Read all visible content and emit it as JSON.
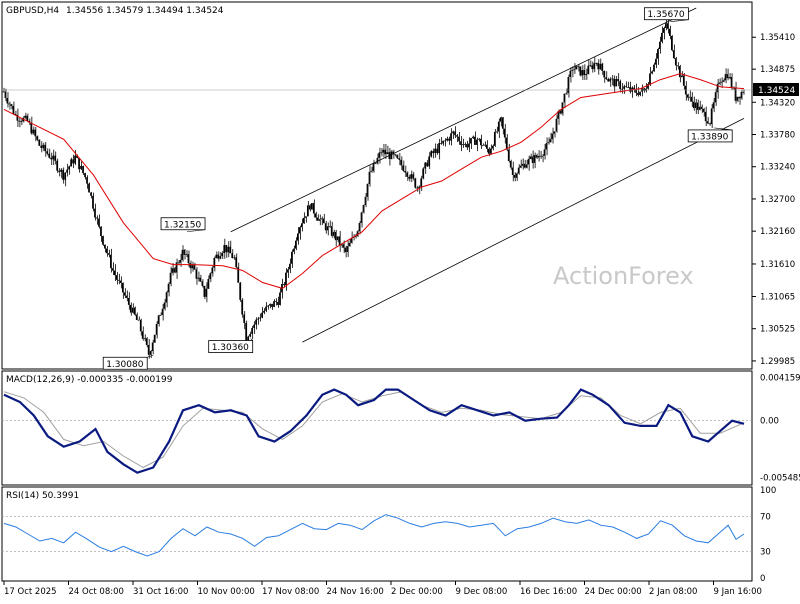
{
  "header": {
    "symbol": "GBPUSD,H4",
    "ohlc": "1.34556 1.34579 1.34494 1.34524"
  },
  "watermark": "ActionForex",
  "colors": {
    "candle": "#000000",
    "ma": "#e00000",
    "channel": "#000000",
    "macd": "#0a1a80",
    "signal": "#a0a0a0",
    "rsi": "#2a7de1",
    "price_marker_bg": "#000000",
    "price_marker_text": "#ffffff"
  },
  "chart_data": [
    {
      "type": "candlestick",
      "title": "GBPUSD,H4",
      "ylim": [
        1.299,
        1.359
      ],
      "y_ticks": [
        "1.35410",
        "1.34875",
        "1.34320",
        "1.33780",
        "1.33240",
        "1.32700",
        "1.32160",
        "1.31610",
        "1.31065",
        "1.30525",
        "1.29985"
      ],
      "current_price": "1.34524",
      "annotations": [
        {
          "label": "1.32150",
          "x": 90,
          "y": 1.3215
        },
        {
          "label": "1.30080",
          "x": 73,
          "y": 1.3008
        },
        {
          "label": "1.30360",
          "x": 122,
          "y": 1.3036
        },
        {
          "label": "1.35670",
          "x": 333,
          "y": 1.3567
        },
        {
          "label": "1.33890",
          "x": 355,
          "y": 1.3389
        }
      ],
      "channel": {
        "upper": [
          [
            114,
            1.3215
          ],
          [
            348,
            1.359
          ]
        ],
        "lower": [
          [
            150,
            1.303
          ],
          [
            372,
            1.3405
          ]
        ]
      },
      "series": [
        {
          "name": "price_path",
          "points": [
            [
              0,
              1.345
            ],
            [
              6,
              1.341
            ],
            [
              12,
              1.34
            ],
            [
              18,
              1.336
            ],
            [
              24,
              1.334
            ],
            [
              30,
              1.331
            ],
            [
              36,
              1.334
            ],
            [
              42,
              1.33
            ],
            [
              48,
              1.322
            ],
            [
              55,
              1.315
            ],
            [
              62,
              1.31
            ],
            [
              68,
              1.306
            ],
            [
              73,
              1.301
            ],
            [
              79,
              1.308
            ],
            [
              84,
              1.314
            ],
            [
              90,
              1.318
            ],
            [
              96,
              1.315
            ],
            [
              101,
              1.311
            ],
            [
              106,
              1.317
            ],
            [
              111,
              1.319
            ],
            [
              116,
              1.317
            ],
            [
              122,
              1.304
            ],
            [
              130,
              1.308
            ],
            [
              138,
              1.31
            ],
            [
              142,
              1.314
            ],
            [
              148,
              1.322
            ],
            [
              154,
              1.326
            ],
            [
              160,
              1.323
            ],
            [
              166,
              1.321
            ],
            [
              172,
              1.318
            ],
            [
              178,
              1.322
            ],
            [
              184,
              1.331
            ],
            [
              190,
              1.335
            ],
            [
              196,
              1.334
            ],
            [
              202,
              1.332
            ],
            [
              208,
              1.329
            ],
            [
              214,
              1.334
            ],
            [
              220,
              1.336
            ],
            [
              226,
              1.338
            ],
            [
              232,
              1.336
            ],
            [
              238,
              1.337
            ],
            [
              244,
              1.335
            ],
            [
              250,
              1.34
            ],
            [
              256,
              1.331
            ],
            [
              262,
              1.333
            ],
            [
              268,
              1.334
            ],
            [
              274,
              1.336
            ],
            [
              280,
              1.342
            ],
            [
              286,
              1.349
            ],
            [
              292,
              1.348
            ],
            [
              298,
              1.35
            ],
            [
              304,
              1.347
            ],
            [
              310,
              1.346
            ],
            [
              316,
              1.345
            ],
            [
              322,
              1.345
            ],
            [
              328,
              1.351
            ],
            [
              333,
              1.3565
            ],
            [
              338,
              1.35
            ],
            [
              344,
              1.344
            ],
            [
              350,
              1.342
            ],
            [
              355,
              1.34
            ],
            [
              360,
              1.347
            ],
            [
              364,
              1.348
            ],
            [
              368,
              1.344
            ],
            [
              372,
              1.3452
            ]
          ]
        },
        {
          "name": "moving_average",
          "points": [
            [
              0,
              1.342
            ],
            [
              15,
              1.3395
            ],
            [
              30,
              1.337
            ],
            [
              45,
              1.331
            ],
            [
              60,
              1.323
            ],
            [
              75,
              1.317
            ],
            [
              85,
              1.316
            ],
            [
              95,
              1.316
            ],
            [
              110,
              1.3158
            ],
            [
              120,
              1.315
            ],
            [
              130,
              1.313
            ],
            [
              140,
              1.312
            ],
            [
              150,
              1.3145
            ],
            [
              160,
              1.3175
            ],
            [
              170,
              1.3195
            ],
            [
              180,
              1.3215
            ],
            [
              190,
              1.325
            ],
            [
              200,
              1.327
            ],
            [
              210,
              1.329
            ],
            [
              220,
              1.33
            ],
            [
              230,
              1.332
            ],
            [
              240,
              1.334
            ],
            [
              250,
              1.335
            ],
            [
              260,
              1.3365
            ],
            [
              270,
              1.339
            ],
            [
              280,
              1.342
            ],
            [
              290,
              1.344
            ],
            [
              300,
              1.3445
            ],
            [
              310,
              1.345
            ],
            [
              320,
              1.3455
            ],
            [
              330,
              1.347
            ],
            [
              340,
              1.348
            ],
            [
              350,
              1.347
            ],
            [
              360,
              1.3458
            ],
            [
              372,
              1.3455
            ]
          ]
        }
      ]
    },
    {
      "type": "line",
      "title": "MACD(12,26,9) -0.000335 -0.000199",
      "ylim": [
        -0.0059,
        0.0045
      ],
      "y_ticks": [
        "0.004159",
        "0.00",
        "-0.005485"
      ],
      "series": [
        {
          "name": "macd",
          "points": [
            [
              0,
              0.0025
            ],
            [
              8,
              0.0018
            ],
            [
              15,
              0.0005
            ],
            [
              22,
              -0.0015
            ],
            [
              30,
              -0.0025
            ],
            [
              38,
              -0.002
            ],
            [
              46,
              -0.0008
            ],
            [
              52,
              -0.003
            ],
            [
              60,
              -0.0042
            ],
            [
              67,
              -0.005
            ],
            [
              75,
              -0.0045
            ],
            [
              83,
              -0.002
            ],
            [
              90,
              0.001
            ],
            [
              98,
              0.0015
            ],
            [
              106,
              0.0008
            ],
            [
              114,
              0.001
            ],
            [
              122,
              0.0005
            ],
            [
              128,
              -0.0015
            ],
            [
              136,
              -0.002
            ],
            [
              144,
              -0.001
            ],
            [
              152,
              0.0005
            ],
            [
              160,
              0.0025
            ],
            [
              166,
              0.003
            ],
            [
              172,
              0.0025
            ],
            [
              178,
              0.0015
            ],
            [
              186,
              0.002
            ],
            [
              192,
              0.003
            ],
            [
              198,
              0.003
            ],
            [
              206,
              0.002
            ],
            [
              214,
              0.001
            ],
            [
              222,
              0.0005
            ],
            [
              230,
              0.0015
            ],
            [
              238,
              0.001
            ],
            [
              246,
              0.0005
            ],
            [
              254,
              0.0008
            ],
            [
              262,
              0.0
            ],
            [
              270,
              0.0002
            ],
            [
              278,
              0.0003
            ],
            [
              284,
              0.0015
            ],
            [
              290,
              0.003
            ],
            [
              296,
              0.0025
            ],
            [
              304,
              0.0015
            ],
            [
              312,
              -0.0002
            ],
            [
              320,
              -0.0005
            ],
            [
              328,
              -0.0005
            ],
            [
              334,
              0.0015
            ],
            [
              340,
              0.0008
            ],
            [
              346,
              -0.0015
            ],
            [
              354,
              -0.002
            ],
            [
              360,
              -0.001
            ],
            [
              366,
              0.0
            ],
            [
              372,
              -0.0003
            ]
          ]
        },
        {
          "name": "signal",
          "points": [
            [
              0,
              0.0028
            ],
            [
              10,
              0.0022
            ],
            [
              20,
              0.0008
            ],
            [
              30,
              -0.0018
            ],
            [
              40,
              -0.0024
            ],
            [
              50,
              -0.002
            ],
            [
              60,
              -0.0034
            ],
            [
              70,
              -0.0045
            ],
            [
              80,
              -0.0035
            ],
            [
              90,
              -0.0005
            ],
            [
              100,
              0.0012
            ],
            [
              110,
              0.001
            ],
            [
              120,
              0.0008
            ],
            [
              130,
              -0.0008
            ],
            [
              140,
              -0.0018
            ],
            [
              150,
              -0.0005
            ],
            [
              160,
              0.0018
            ],
            [
              170,
              0.0026
            ],
            [
              180,
              0.0018
            ],
            [
              190,
              0.0024
            ],
            [
              200,
              0.0028
            ],
            [
              210,
              0.0015
            ],
            [
              220,
              0.0008
            ],
            [
              230,
              0.0012
            ],
            [
              240,
              0.001
            ],
            [
              250,
              0.0006
            ],
            [
              260,
              0.0004
            ],
            [
              270,
              0.0002
            ],
            [
              280,
              0.0008
            ],
            [
              290,
              0.0024
            ],
            [
              300,
              0.0022
            ],
            [
              310,
              0.0005
            ],
            [
              320,
              -0.0003
            ],
            [
              330,
              0.0008
            ],
            [
              340,
              0.0012
            ],
            [
              350,
              -0.0012
            ],
            [
              360,
              -0.0012
            ],
            [
              372,
              -0.0002
            ]
          ]
        }
      ]
    },
    {
      "type": "line",
      "title": "RSI(14) 50.3991",
      "ylim": [
        0,
        100
      ],
      "y_ticks": [
        "100",
        "70",
        "30",
        "0"
      ],
      "reference_lines": [
        70,
        30
      ],
      "series": [
        {
          "name": "rsi",
          "points": [
            [
              0,
              62
            ],
            [
              6,
              58
            ],
            [
              12,
              50
            ],
            [
              18,
              42
            ],
            [
              24,
              45
            ],
            [
              30,
              40
            ],
            [
              36,
              52
            ],
            [
              42,
              44
            ],
            [
              48,
              35
            ],
            [
              54,
              30
            ],
            [
              60,
              36
            ],
            [
              66,
              30
            ],
            [
              72,
              25
            ],
            [
              78,
              30
            ],
            [
              84,
              45
            ],
            [
              90,
              56
            ],
            [
              96,
              48
            ],
            [
              102,
              58
            ],
            [
              108,
              52
            ],
            [
              114,
              50
            ],
            [
              120,
              45
            ],
            [
              126,
              36
            ],
            [
              132,
              46
            ],
            [
              138,
              48
            ],
            [
              144,
              55
            ],
            [
              150,
              62
            ],
            [
              156,
              56
            ],
            [
              162,
              55
            ],
            [
              168,
              62
            ],
            [
              174,
              60
            ],
            [
              180,
              55
            ],
            [
              186,
              65
            ],
            [
              192,
              72
            ],
            [
              198,
              68
            ],
            [
              204,
              62
            ],
            [
              210,
              58
            ],
            [
              216,
              62
            ],
            [
              222,
              64
            ],
            [
              228,
              62
            ],
            [
              234,
              58
            ],
            [
              240,
              60
            ],
            [
              246,
              62
            ],
            [
              252,
              48
            ],
            [
              258,
              56
            ],
            [
              264,
              58
            ],
            [
              270,
              62
            ],
            [
              276,
              68
            ],
            [
              282,
              64
            ],
            [
              288,
              62
            ],
            [
              294,
              66
            ],
            [
              300,
              60
            ],
            [
              306,
              58
            ],
            [
              312,
              52
            ],
            [
              318,
              45
            ],
            [
              324,
              50
            ],
            [
              330,
              65
            ],
            [
              336,
              60
            ],
            [
              342,
              48
            ],
            [
              348,
              42
            ],
            [
              354,
              40
            ],
            [
              360,
              52
            ],
            [
              364,
              60
            ],
            [
              368,
              44
            ],
            [
              372,
              50
            ]
          ]
        }
      ]
    }
  ],
  "x_axis": {
    "labels": [
      "17 Oct 2025",
      "24 Oct 08:00",
      "31 Oct 16:00",
      "10 Nov 00:00",
      "17 Nov 08:00",
      "24 Nov 16:00",
      "2 Dec 00:00",
      "9 Dec 08:00",
      "16 Dec 16:00",
      "24 Dec 00:00",
      "2 Jan 08:00",
      "9 Jan 16:00"
    ]
  }
}
